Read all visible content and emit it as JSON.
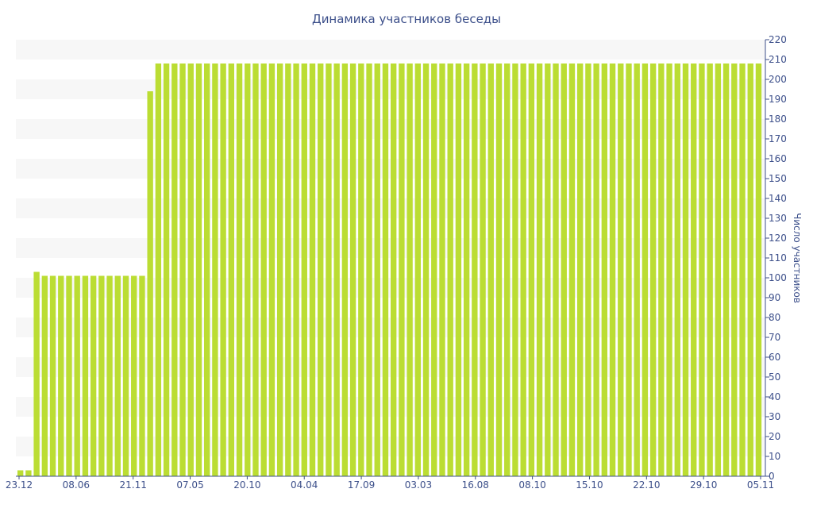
{
  "chart_data": {
    "type": "bar",
    "title": "Динамика участников беседы",
    "ylabel": "Число участников",
    "xlabel": "",
    "ylim": [
      0,
      220
    ],
    "y_ticks": [
      0,
      10,
      20,
      30,
      40,
      50,
      60,
      70,
      80,
      90,
      100,
      110,
      120,
      130,
      140,
      150,
      160,
      170,
      180,
      190,
      200,
      210,
      220
    ],
    "x_tick_labels": [
      "23.12",
      "08.06",
      "21.11",
      "07.05",
      "20.10",
      "04.04",
      "17.09",
      "03.03",
      "16.08",
      "08.10",
      "15.10",
      "22.10",
      "29.10",
      "05.11"
    ],
    "grid": "alternating horizontal bands",
    "legend": "none",
    "y_axis_position": "right",
    "bar_color": "#bbdd33",
    "values": [
      3,
      3,
      103,
      101,
      101,
      101,
      101,
      101,
      101,
      101,
      101,
      101,
      101,
      101,
      101,
      101,
      194,
      208,
      208,
      208,
      208,
      208,
      208,
      208,
      208,
      208,
      208,
      208,
      208,
      208,
      208,
      208,
      208,
      208,
      208,
      208,
      208,
      208,
      208,
      208,
      208,
      208,
      208,
      208,
      208,
      208,
      208,
      208,
      208,
      208,
      208,
      208,
      208,
      208,
      208,
      208,
      208,
      208,
      208,
      208,
      208,
      208,
      208,
      208,
      208,
      208,
      208,
      208,
      208,
      208,
      208,
      208,
      208,
      208,
      208,
      208,
      208,
      208,
      208,
      208,
      208,
      208,
      208,
      208,
      208,
      208,
      208,
      208,
      208,
      208,
      208,
      208
    ]
  }
}
